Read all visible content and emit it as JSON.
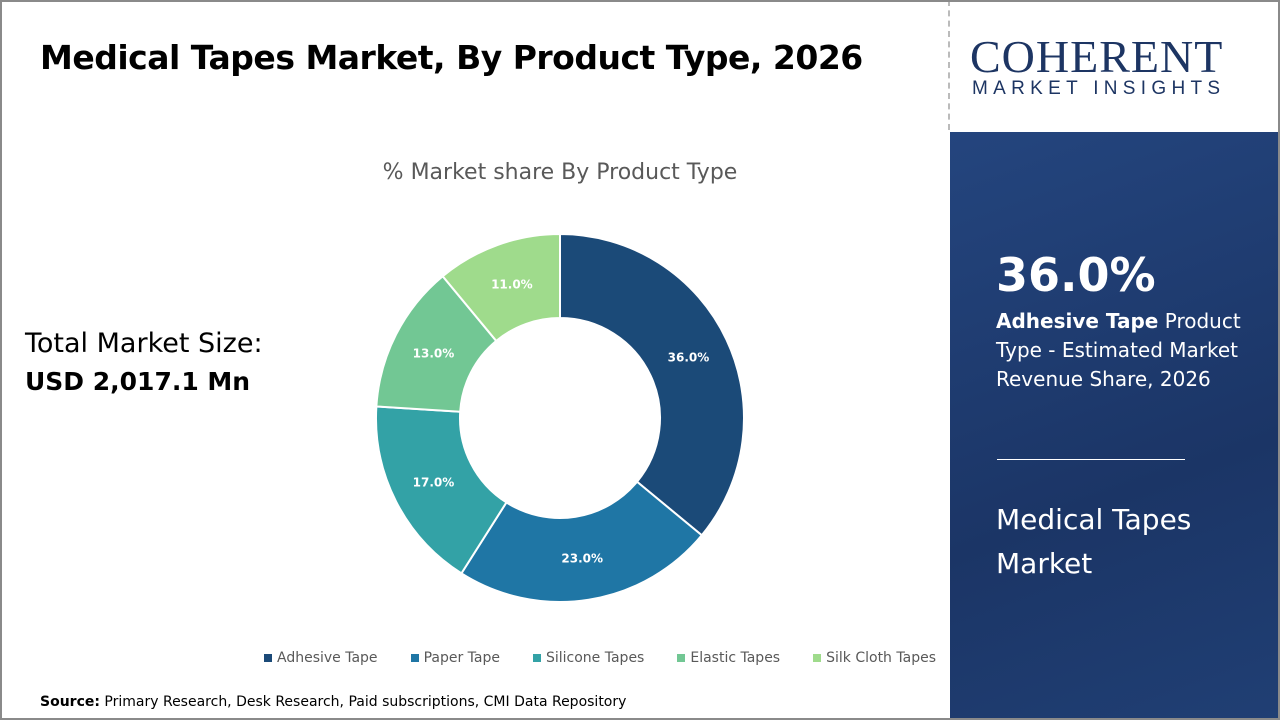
{
  "title": "Medical Tapes Market, By Product Type, 2026",
  "logo": {
    "line1": "COHERENT",
    "line2": "MARKET INSIGHTS"
  },
  "total": {
    "label": "Total Market Size:",
    "value": "USD 2,017.1 Mn"
  },
  "highlight": {
    "value": "36.0%",
    "bold": "Adhesive Tape",
    "rest": " Product Type - Estimated Market Revenue Share, 2026",
    "market": "Medical Tapes Market"
  },
  "source": {
    "label": "Source:",
    "text": " Primary Research, Desk Research, Paid subscriptions, CMI Data Repository"
  },
  "chart_data": {
    "type": "pie",
    "donut": true,
    "title": "% Market share By Product Type",
    "categories": [
      "Adhesive Tape",
      "Paper Tape",
      "Silicone Tapes",
      "Elastic Tapes",
      "Silk Cloth Tapes"
    ],
    "values": [
      36.0,
      23.0,
      17.0,
      13.0,
      11.0
    ],
    "labels": [
      "36.0%",
      "23.0%",
      "17.0%",
      "13.0%",
      "11.0%"
    ],
    "colors": [
      "#1b4a78",
      "#1f76a5",
      "#33a2a6",
      "#72c794",
      "#9fdb8c"
    ],
    "legend": "bottom"
  }
}
